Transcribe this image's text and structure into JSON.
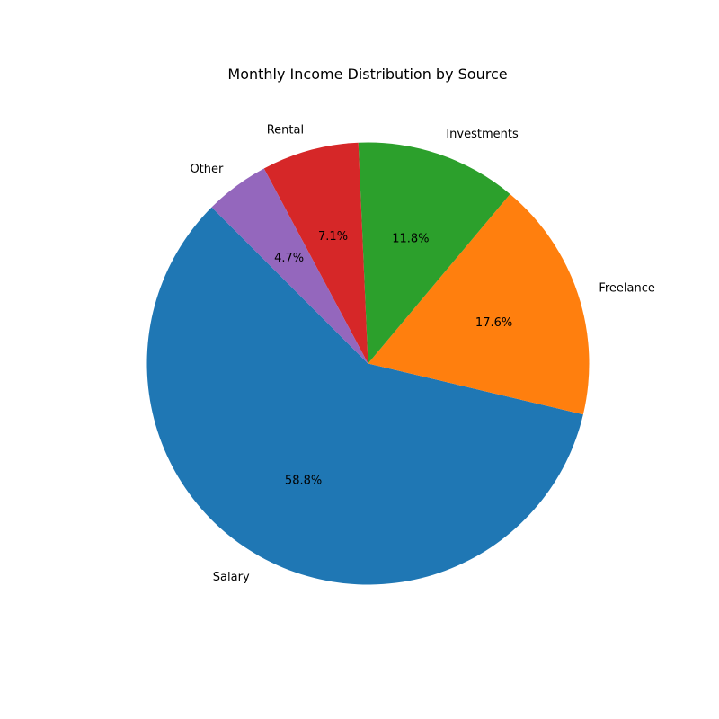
{
  "chart_data": {
    "type": "pie",
    "title": "Monthly Income Distribution by Source",
    "categories": [
      "Salary",
      "Freelance",
      "Investments",
      "Rental",
      "Other"
    ],
    "values": [
      58.8,
      17.6,
      11.8,
      7.1,
      4.7
    ],
    "percent_labels": [
      "58.8%",
      "17.6%",
      "11.8%",
      "7.1%",
      "4.7%"
    ],
    "colors": [
      "#1f77b4",
      "#ff7f0e",
      "#2ca02c",
      "#d62728",
      "#9467bd"
    ],
    "start_angle_deg": 135,
    "direction": "counterclockwise",
    "legend": "none"
  }
}
